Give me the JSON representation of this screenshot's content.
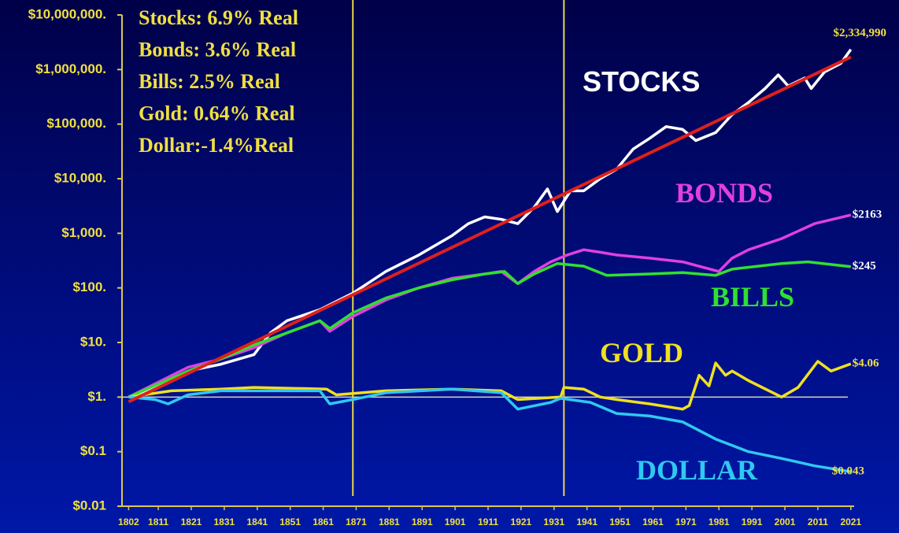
{
  "chart_data": {
    "type": "line",
    "log_y": true,
    "ylim": [
      0.01,
      10000000
    ],
    "yticks": [
      {
        "value": 10000000,
        "label": "$10,000,000."
      },
      {
        "value": 1000000,
        "label": "$1,000,000."
      },
      {
        "value": 100000,
        "label": "$100,000."
      },
      {
        "value": 10000,
        "label": "$10,000."
      },
      {
        "value": 1000,
        "label": "$1,000."
      },
      {
        "value": 100,
        "label": "$100."
      },
      {
        "value": 10,
        "label": "$10."
      },
      {
        "value": 1,
        "label": "$1."
      },
      {
        "value": 0.1,
        "label": "$0.1"
      },
      {
        "value": 0.01,
        "label": "$0.01"
      }
    ],
    "xlim": [
      1800,
      2022
    ],
    "xticks": [
      1802,
      1811,
      1821,
      1831,
      1841,
      1851,
      1861,
      1871,
      1881,
      1891,
      1901,
      1911,
      1921,
      1931,
      1941,
      1951,
      1961,
      1971,
      1981,
      1991,
      2001,
      2011,
      2021
    ],
    "annotations": [
      "Stocks: 6.9% Real",
      "Bonds: 3.6% Real",
      "Bills:    2.5% Real",
      "Gold:   0.64% Real",
      "Dollar:-1.4%Real"
    ],
    "vlines": [
      1870,
      1934
    ],
    "vline_color": "#e8d84a",
    "hline": 1,
    "hline_color": "#d8d8b0",
    "trend": {
      "color": "#e0201c",
      "x": [
        1802,
        2021
      ],
      "values": [
        0.82,
        1700000
      ]
    },
    "series": [
      {
        "name": "STOCKS",
        "color": "#ffffff",
        "end_label": "$2,334,990",
        "x": [
          1802,
          1810,
          1820,
          1830,
          1840,
          1845,
          1850,
          1860,
          1870,
          1880,
          1890,
          1900,
          1905,
          1910,
          1915,
          1920,
          1925,
          1929,
          1932,
          1936,
          1940,
          1945,
          1950,
          1955,
          1960,
          1965,
          1970,
          1974,
          1980,
          1985,
          1990,
          1995,
          1999,
          2002,
          2007,
          2009,
          2013,
          2018,
          2021
        ],
        "values": [
          1,
          1.5,
          3,
          4,
          6,
          15,
          25,
          40,
          80,
          200,
          400,
          900,
          1500,
          2000,
          1800,
          1500,
          3000,
          6500,
          2500,
          6000,
          6000,
          10000,
          15000,
          35000,
          55000,
          90000,
          80000,
          50000,
          70000,
          150000,
          250000,
          450000,
          800000,
          500000,
          700000,
          450000,
          900000,
          1300000,
          2334990
        ]
      },
      {
        "name": "BONDS",
        "color": "#e040e0",
        "end_label": "$2163",
        "x": [
          1802,
          1820,
          1830,
          1840,
          1850,
          1860,
          1863,
          1870,
          1880,
          1890,
          1900,
          1910,
          1915,
          1920,
          1925,
          1930,
          1935,
          1940,
          1945,
          1950,
          1960,
          1970,
          1981,
          1985,
          1990,
          2000,
          2010,
          2021
        ],
        "values": [
          1,
          3.5,
          5,
          8,
          15,
          25,
          16,
          30,
          60,
          100,
          150,
          180,
          200,
          120,
          200,
          300,
          400,
          500,
          450,
          400,
          350,
          300,
          200,
          350,
          500,
          800,
          1500,
          2163
        ]
      },
      {
        "name": "BILLS",
        "color": "#30e030",
        "end_label": "$245",
        "x": [
          1802,
          1820,
          1830,
          1840,
          1850,
          1860,
          1863,
          1870,
          1880,
          1890,
          1900,
          1910,
          1916,
          1920,
          1925,
          1932,
          1940,
          1947,
          1960,
          1970,
          1980,
          1985,
          2000,
          2008,
          2021
        ],
        "values": [
          1,
          3,
          5,
          9,
          15,
          25,
          18,
          35,
          65,
          100,
          140,
          180,
          200,
          120,
          180,
          280,
          250,
          170,
          180,
          190,
          170,
          220,
          280,
          300,
          245
        ]
      },
      {
        "name": "GOLD",
        "color": "#f0e020",
        "end_label": "$4.06",
        "x": [
          1802,
          1815,
          1830,
          1840,
          1862,
          1865,
          1880,
          1900,
          1915,
          1920,
          1933,
          1934,
          1940,
          1945,
          1950,
          1960,
          1970,
          1972,
          1975,
          1978,
          1980,
          1983,
          1985,
          1990,
          2000,
          2005,
          2011,
          2015,
          2021
        ],
        "values": [
          1,
          1.3,
          1.4,
          1.5,
          1.4,
          1.1,
          1.3,
          1.4,
          1.3,
          0.9,
          1,
          1.5,
          1.4,
          1,
          0.9,
          0.75,
          0.6,
          0.7,
          2.5,
          1.6,
          4.2,
          2.5,
          3,
          2,
          1,
          1.5,
          4.5,
          3,
          4.06
        ]
      },
      {
        "name": "DOLLAR",
        "color": "#30c8f0",
        "end_label": "$0.043",
        "x": [
          1802,
          1810,
          1814,
          1820,
          1830,
          1860,
          1863,
          1870,
          1880,
          1900,
          1915,
          1920,
          1930,
          1933,
          1942,
          1950,
          1960,
          1970,
          1980,
          1990,
          2000,
          2010,
          2021
        ],
        "values": [
          1,
          0.9,
          0.75,
          1.1,
          1.3,
          1.3,
          0.75,
          0.9,
          1.2,
          1.4,
          1.2,
          0.6,
          0.8,
          0.95,
          0.8,
          0.5,
          0.45,
          0.35,
          0.17,
          0.1,
          0.075,
          0.055,
          0.043
        ]
      }
    ]
  }
}
